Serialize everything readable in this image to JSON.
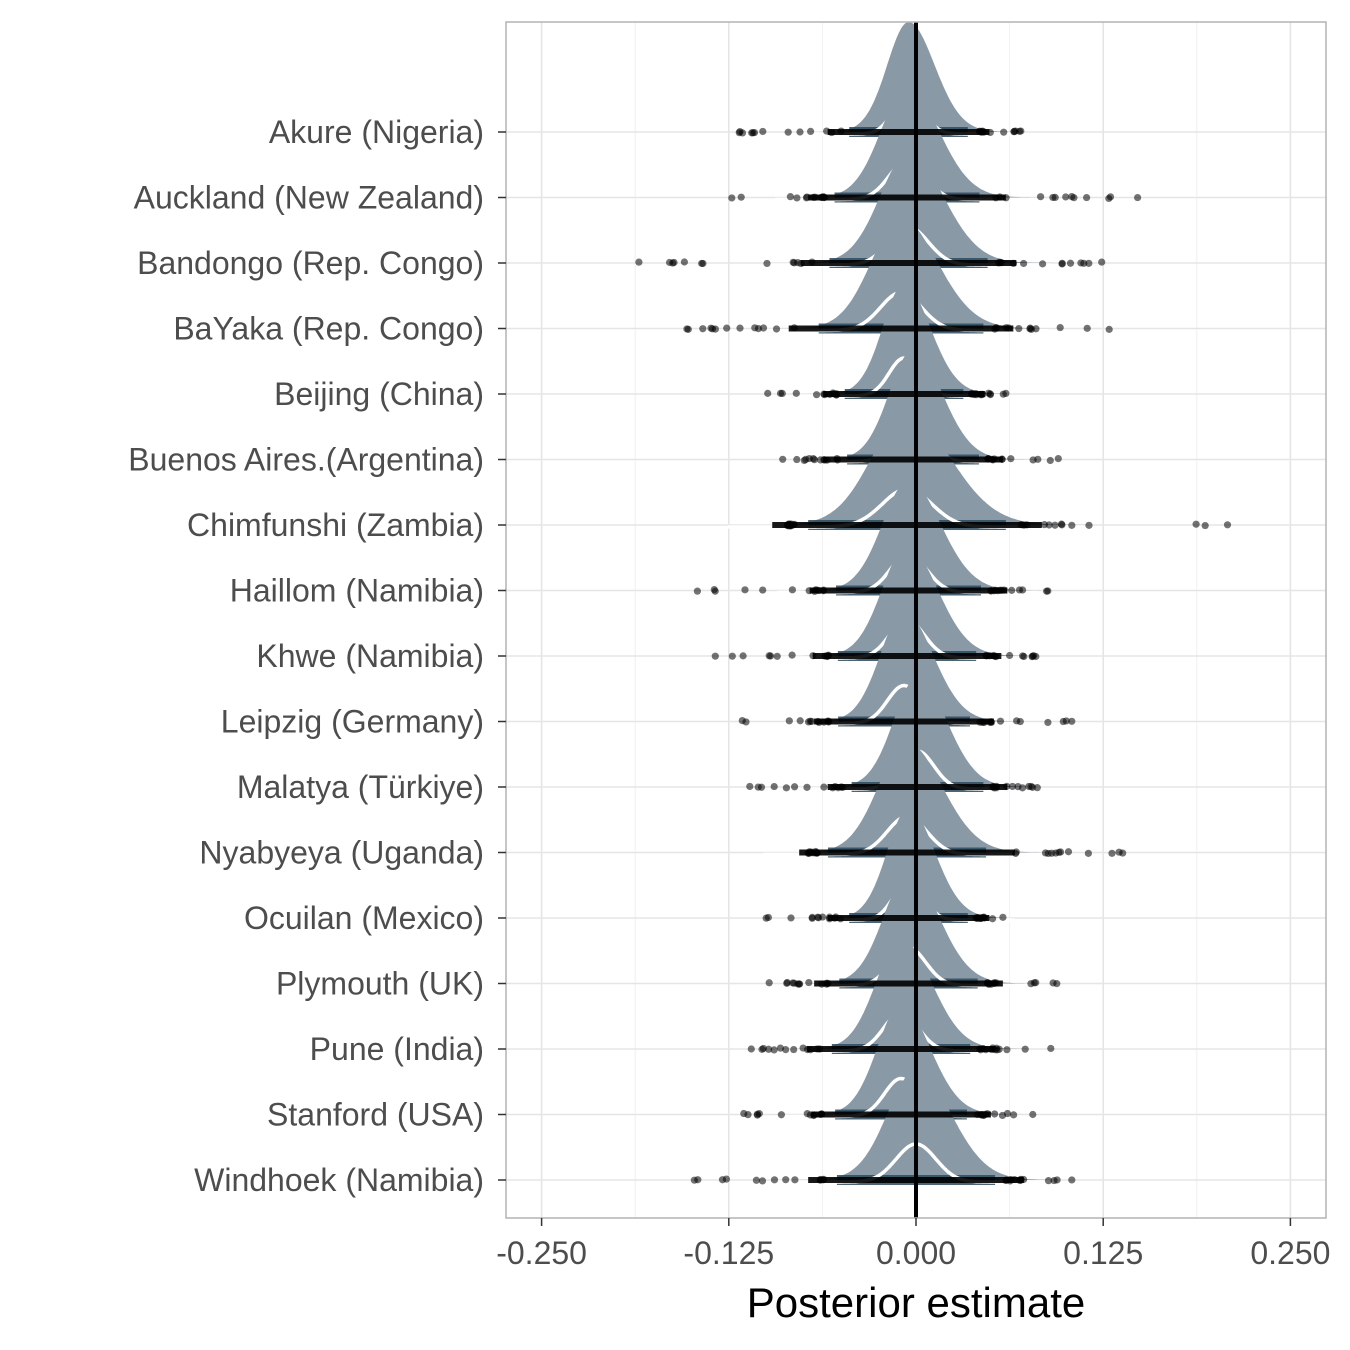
{
  "chart_data": {
    "type": "ridgeline",
    "title": "",
    "xlabel": "Posterior estimate",
    "ylabel": "",
    "xlim": [
      -0.27,
      0.27
    ],
    "x_ticks": [
      "-0.250",
      "-0.125",
      "0.000",
      "0.125",
      "0.250"
    ],
    "x_tick_values": [
      -0.25,
      -0.125,
      0.0,
      0.125,
      0.25
    ],
    "reference_line": 0,
    "grid": true,
    "legend": "none",
    "colors": {
      "density_fill": "#8a99a6",
      "density_dark": "#2c4a5e",
      "median_curve": "#ffffff",
      "points": "#000000",
      "grid": "#e5e5e5",
      "panel_border": "#b3b3b3"
    },
    "categories": [
      "Akure (Nigeria)",
      "Auckland (New Zealand)",
      "Bandongo (Rep. Congo)",
      "BaYaka (Rep. Congo)",
      "Beijing (China)",
      "Buenos Aires.(Argentina)",
      "Chimfunshi (Zambia)",
      "Haillom (Namibia)",
      "Khwe (Namibia)",
      "Leipzig (Germany)",
      "Malatya (Türkiye)",
      "Nyabyeya (Uganda)",
      "Ocuilan (Mexico)",
      "Plymouth (UK)",
      "Pune (India)",
      "Stanford (USA)",
      "Windhoek (Namibia)"
    ],
    "series": [
      {
        "site": "Akure (Nigeria)",
        "mode": -0.005,
        "sd": 0.018,
        "min": -0.118,
        "max": 0.07
      },
      {
        "site": "Auckland (New Zealand)",
        "mode": -0.006,
        "sd": 0.022,
        "min": -0.123,
        "max": 0.148
      },
      {
        "site": "Bandongo (Rep. Congo)",
        "mode": -0.005,
        "sd": 0.024,
        "min": -0.185,
        "max": 0.124
      },
      {
        "site": "BaYaka (Rep. Congo)",
        "mode": -0.01,
        "sd": 0.025,
        "min": -0.153,
        "max": 0.129
      },
      {
        "site": "Beijing (China)",
        "mode": -0.008,
        "sd": 0.018,
        "min": -0.099,
        "max": 0.06
      },
      {
        "site": "Buenos Aires.(Argentina)",
        "mode": -0.002,
        "sd": 0.02,
        "min": -0.089,
        "max": 0.095
      },
      {
        "site": "Chimfunshi (Zambia)",
        "mode": -0.006,
        "sd": 0.03,
        "min": -0.086,
        "max": 0.208
      },
      {
        "site": "Haillom (Namibia)",
        "mode": -0.005,
        "sd": 0.022,
        "min": -0.146,
        "max": 0.088
      },
      {
        "site": "Khwe (Namibia)",
        "mode": -0.006,
        "sd": 0.021,
        "min": -0.134,
        "max": 0.08
      },
      {
        "site": "Leipzig (Germany)",
        "mode": -0.008,
        "sd": 0.02,
        "min": -0.116,
        "max": 0.104
      },
      {
        "site": "Malatya (Türkiye)",
        "mode": 0.001,
        "sd": 0.02,
        "min": -0.111,
        "max": 0.081
      },
      {
        "site": "Nyabyeya (Uganda)",
        "mode": -0.006,
        "sd": 0.024,
        "min": -0.072,
        "max": 0.138
      },
      {
        "site": "Ocuilan (Mexico)",
        "mode": -0.005,
        "sd": 0.018,
        "min": -0.1,
        "max": 0.058
      },
      {
        "site": "Plymouth (UK)",
        "mode": -0.005,
        "sd": 0.021,
        "min": -0.098,
        "max": 0.094
      },
      {
        "site": "Pune (India)",
        "mode": -0.01,
        "sd": 0.021,
        "min": -0.11,
        "max": 0.09
      },
      {
        "site": "Stanford (USA)",
        "mode": -0.01,
        "sd": 0.02,
        "min": -0.115,
        "max": 0.078
      },
      {
        "site": "Windhoek (Namibia)",
        "mode": 0.0,
        "sd": 0.024,
        "min": -0.148,
        "max": 0.104
      }
    ]
  }
}
